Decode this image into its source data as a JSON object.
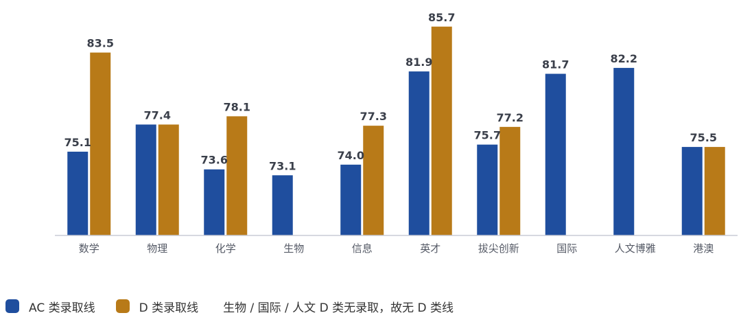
{
  "chart_data": {
    "type": "bar",
    "categories": [
      "数学",
      "物理",
      "化学",
      "生物",
      "信息",
      "英才",
      "拔尖创新",
      "国际",
      "人文博雅",
      "港澳"
    ],
    "series": [
      {
        "name": "AC 类录取线",
        "color": "#1f4e9e",
        "values": [
          75.1,
          77.4,
          73.6,
          73.1,
          74.0,
          81.9,
          75.7,
          81.7,
          82.2,
          75.5
        ],
        "labels": [
          "75.1",
          "77.4",
          "73.6",
          "73.1",
          "74.0",
          "81.9",
          "75.7",
          "81.7",
          "82.2",
          "75.5"
        ]
      },
      {
        "name": "D 类录取线",
        "color": "#b87a18",
        "values": [
          83.5,
          77.4,
          78.1,
          null,
          77.3,
          85.7,
          77.2,
          null,
          null,
          75.5
        ],
        "labels": [
          "83.5",
          "",
          "78.1",
          "",
          "77.3",
          "85.7",
          "77.2",
          "",
          "",
          ""
        ]
      }
    ],
    "ylim": [
      68,
      86.5
    ],
    "grid": false,
    "legend_position": "bottom-left"
  },
  "legend": {
    "ac_label": "AC 类录取线",
    "d_label": "D 类录取线",
    "note": "生物 / 国际 / 人文 D 类无录取，故无 D 类线"
  }
}
